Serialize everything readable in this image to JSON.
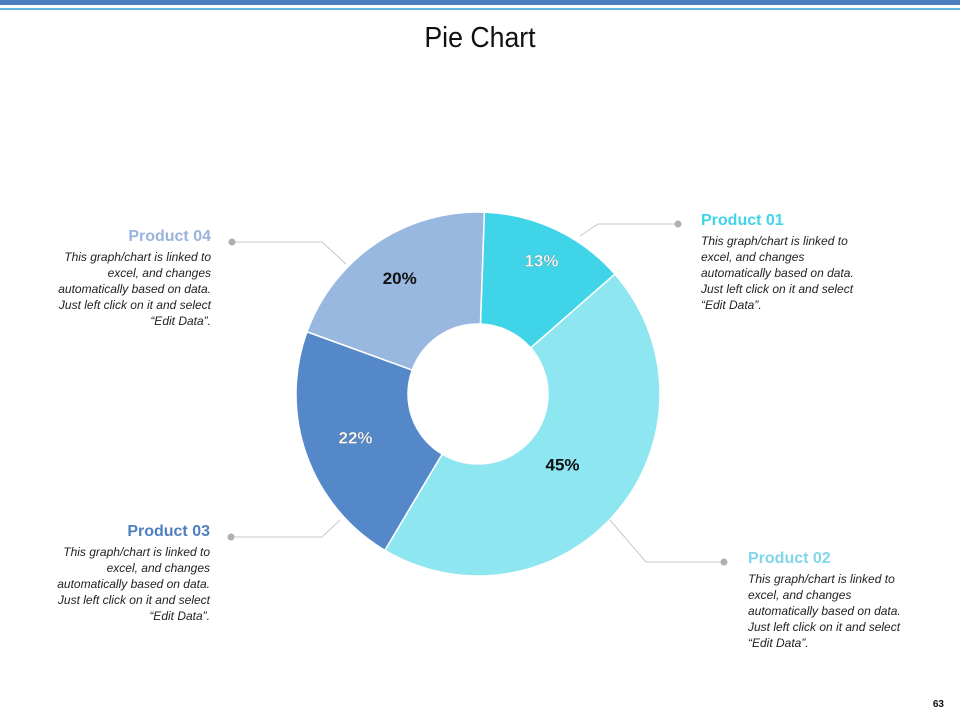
{
  "slide": {
    "title": "Pie Chart",
    "slide_number": "63",
    "colors": {
      "bar_dark": "#4a7ebf",
      "bar_light": "#5db7e0"
    }
  },
  "chart_data": {
    "type": "pie",
    "variant": "donut",
    "title": "Pie Chart",
    "slices": [
      {
        "name": "Product 01",
        "value": 13,
        "label": "13%",
        "color": "#40d4e8"
      },
      {
        "name": "Product 02",
        "value": 45,
        "label": "45%",
        "color": "#8ee6f0"
      },
      {
        "name": "Product 03",
        "value": 22,
        "label": "22%",
        "color": "#5588c8"
      },
      {
        "name": "Product 04",
        "value": 20,
        "label": "20%",
        "color": "#98b8e0"
      }
    ]
  },
  "legend": [
    {
      "name": "Product 01",
      "color": "#40d4e8",
      "desc": "This graph/chart is linked to excel, and changes automatically based on data. Just left click on it and select “Edit Data”."
    },
    {
      "name": "Product 02",
      "color": "#7fd6ea",
      "desc": "This graph/chart is linked to excel, and changes automatically based on data. Just left click on it and select “Edit Data”."
    },
    {
      "name": "Product 03",
      "color": "#4f7fbf",
      "desc": "This graph/chart is linked to excel, and changes automatically based on data. Just left click on it and select “Edit Data”."
    },
    {
      "name": "Product 04",
      "color": "#98b4dc",
      "desc": "This graph/chart is linked to excel, and changes automatically based on data. Just left click on it and select “Edit Data”."
    }
  ]
}
